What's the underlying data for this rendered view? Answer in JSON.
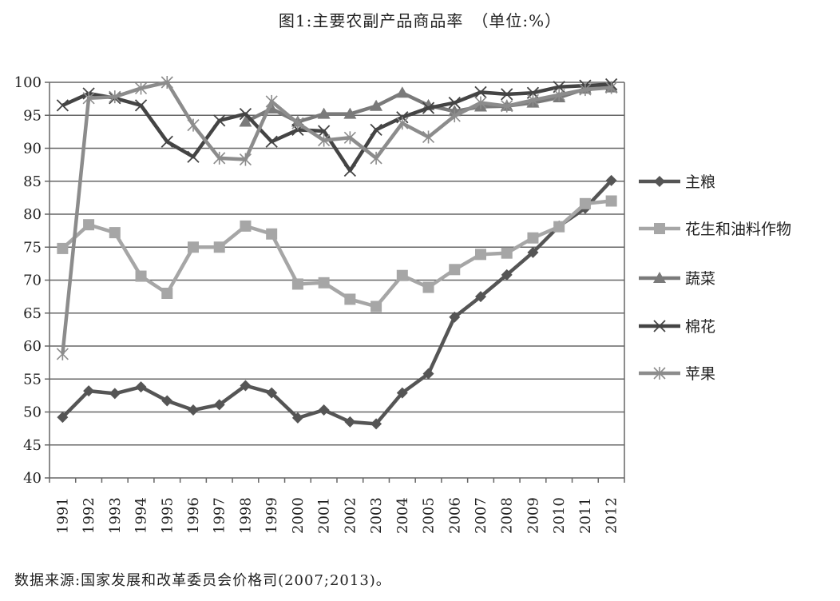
{
  "chart_data": {
    "type": "line",
    "title": "图1:主要农副产品商品率　（单位:%）",
    "xlabel": "",
    "ylabel": "",
    "ylim": [
      40,
      100
    ],
    "yticks": [
      40,
      45,
      50,
      55,
      60,
      65,
      70,
      75,
      80,
      85,
      90,
      95,
      100
    ],
    "grid": true,
    "legend_position": "right",
    "x": [
      "1991",
      "1992",
      "1993",
      "1994",
      "1995",
      "1996",
      "1997",
      "1998",
      "1999",
      "2000",
      "2001",
      "2002",
      "2003",
      "2004",
      "2005",
      "2006",
      "2007",
      "2008",
      "2009",
      "2010",
      "2011",
      "2012"
    ],
    "series": [
      {
        "name": "主粮",
        "marker": "diamond",
        "color": "#555555",
        "values": [
          49.2,
          53.2,
          52.8,
          53.8,
          51.7,
          50.3,
          51.1,
          54.0,
          52.9,
          49.1,
          50.3,
          48.5,
          48.2,
          52.9,
          55.8,
          64.4,
          67.5,
          70.8,
          74.2,
          78.2,
          80.9,
          85.1
        ]
      },
      {
        "name": "花生和油料作物",
        "marker": "square",
        "color": "#a6a6a6",
        "values": [
          74.8,
          78.4,
          77.2,
          70.6,
          68.0,
          75.0,
          75.0,
          78.2,
          77.0,
          69.4,
          69.6,
          67.1,
          66.0,
          70.7,
          68.9,
          71.6,
          73.9,
          74.1,
          76.4,
          78.1,
          81.6,
          82.0
        ]
      },
      {
        "name": "蔬菜",
        "marker": "triangle",
        "color": "#7a7a7a",
        "values": [
          null,
          null,
          null,
          null,
          null,
          null,
          null,
          94.0,
          96.0,
          94.0,
          95.2,
          95.2,
          96.4,
          98.4,
          96.5,
          95.6,
          96.3,
          96.4,
          96.9,
          97.7,
          99.0,
          99.2
        ]
      },
      {
        "name": "棉花",
        "marker": "x",
        "color": "#444444",
        "values": [
          96.5,
          98.3,
          97.6,
          96.5,
          91.0,
          88.7,
          94.2,
          95.2,
          91.0,
          92.8,
          92.6,
          86.6,
          92.8,
          94.7,
          96.1,
          96.9,
          98.5,
          98.2,
          98.4,
          99.3,
          99.5,
          99.7
        ]
      },
      {
        "name": "苹果",
        "marker": "asterisk",
        "color": "#8c8c8c",
        "values": [
          58.8,
          97.6,
          97.8,
          99.1,
          100.0,
          93.5,
          88.5,
          88.3,
          97.1,
          93.8,
          91.2,
          91.6,
          88.5,
          93.8,
          91.7,
          94.9,
          96.9,
          96.4,
          97.3,
          98.1,
          98.9,
          99.2
        ]
      }
    ]
  },
  "source_note": "数据来源:国家发展和改革委员会价格司(2007;2013)。"
}
